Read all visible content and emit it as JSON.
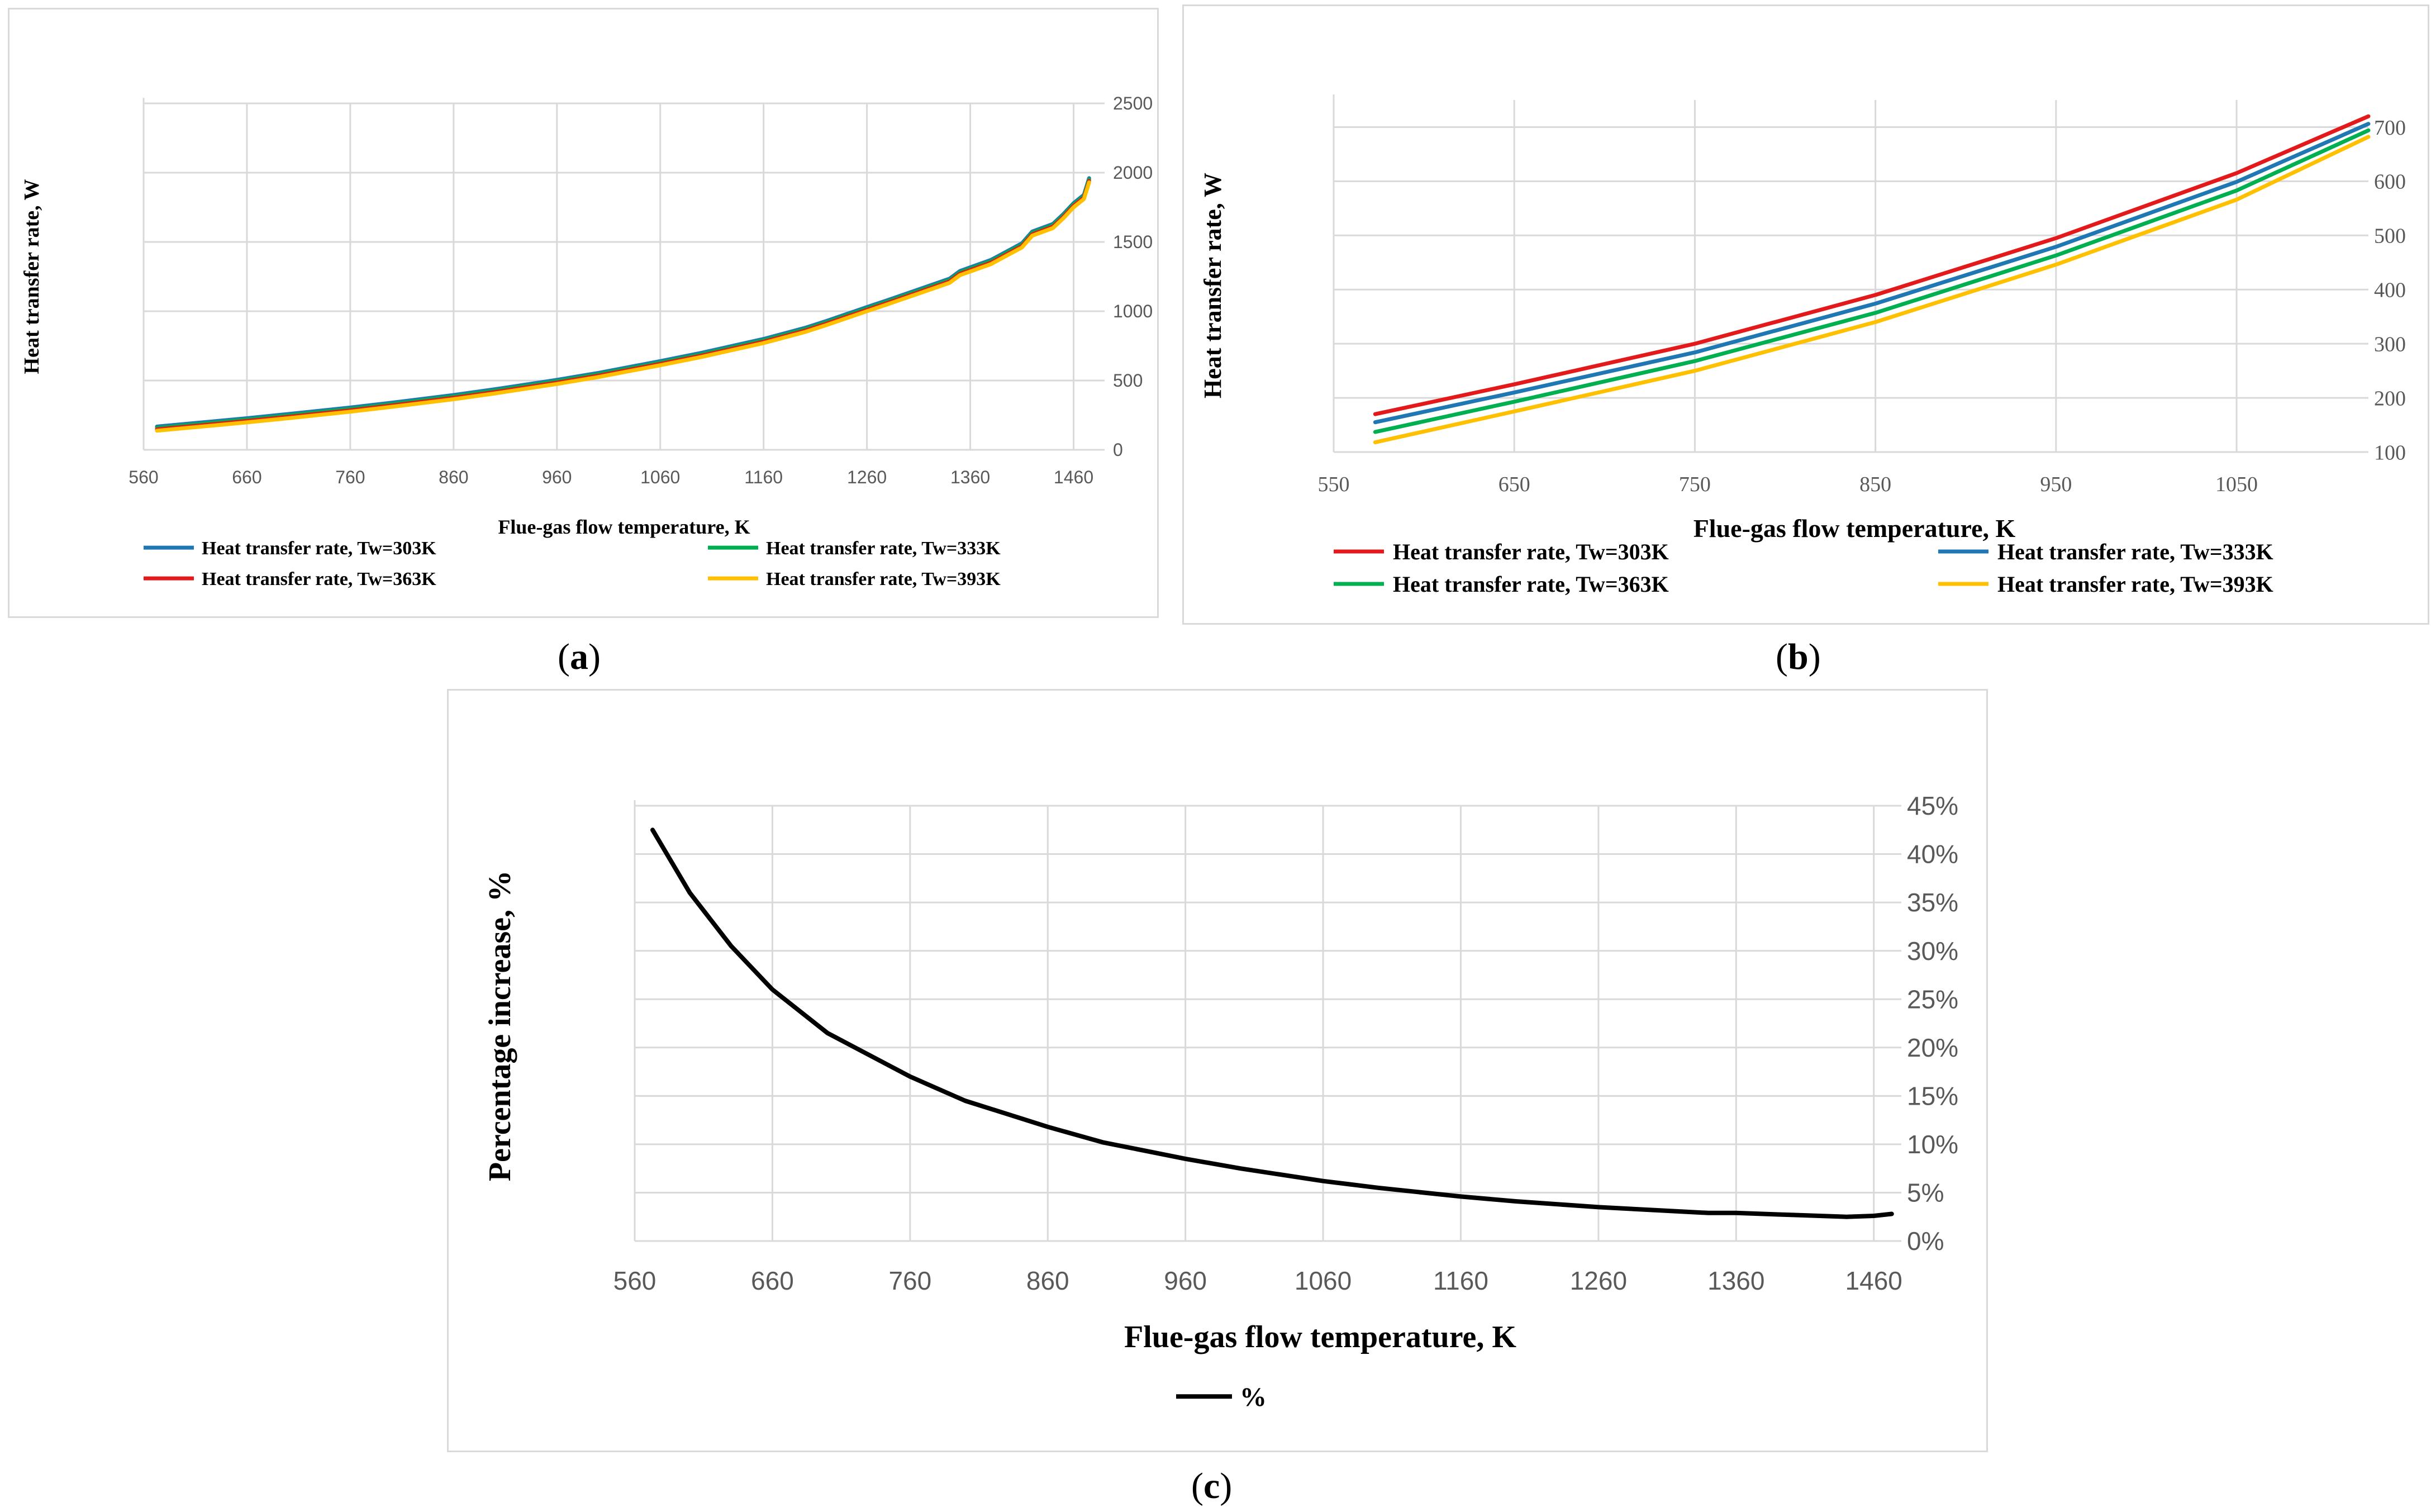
{
  "captions": [
    "(a)",
    "(b)",
    "(c)"
  ],
  "chart_data": [
    {
      "id": "a",
      "type": "line",
      "title": "",
      "xlabel": "Flue-gas flow temperature, K",
      "ylabel": "Heat transfer rate, W",
      "xlim": [
        560,
        1490
      ],
      "ylim": [
        0,
        2500
      ],
      "x_ticks": [
        "560",
        "660",
        "760",
        "860",
        "960",
        "1060",
        "1160",
        "1260",
        "1360",
        "1460"
      ],
      "x_tick_values": [
        560,
        660,
        760,
        860,
        960,
        1060,
        1160,
        1260,
        1360,
        1460
      ],
      "y_ticks": [
        "0",
        "500",
        "1000",
        "1500",
        "2000",
        "2500"
      ],
      "y_tick_values": [
        0,
        500,
        1000,
        1500,
        2000,
        2500
      ],
      "grid": true,
      "legend_position": "bottom",
      "series": [
        {
          "name": "Heat transfer rate, Tw=303K",
          "color": "#1f77b4",
          "x": [
            573,
            620,
            660,
            700,
            760,
            800,
            860,
            900,
            960,
            1000,
            1060,
            1100,
            1160,
            1200,
            1220,
            1260,
            1280,
            1340,
            1350,
            1380,
            1400,
            1410,
            1420,
            1440,
            1450,
            1460,
            1470,
            1475
          ],
          "y": [
            168,
            200,
            228,
            258,
            305,
            340,
            395,
            437,
            505,
            555,
            640,
            700,
            800,
            880,
            928,
            1030,
            1080,
            1235,
            1290,
            1370,
            1450,
            1490,
            1575,
            1630,
            1700,
            1780,
            1840,
            1960
          ]
        },
        {
          "name": "Heat transfer rate, Tw=333K",
          "color": "#00b050",
          "x": [
            573,
            620,
            660,
            700,
            760,
            800,
            860,
            900,
            960,
            1000,
            1060,
            1100,
            1160,
            1200,
            1220,
            1260,
            1280,
            1340,
            1350,
            1380,
            1400,
            1410,
            1420,
            1440,
            1450,
            1460,
            1470,
            1475
          ],
          "y": [
            158,
            190,
            218,
            248,
            295,
            330,
            385,
            427,
            495,
            545,
            630,
            690,
            790,
            870,
            918,
            1020,
            1070,
            1225,
            1280,
            1360,
            1440,
            1480,
            1565,
            1620,
            1690,
            1770,
            1830,
            1950
          ]
        },
        {
          "name": "Heat transfer rate, Tw=363K",
          "color": "#e31a1c",
          "x": [
            573,
            620,
            660,
            700,
            760,
            800,
            860,
            900,
            960,
            1000,
            1060,
            1100,
            1160,
            1200,
            1220,
            1260,
            1280,
            1340,
            1350,
            1380,
            1400,
            1410,
            1420,
            1440,
            1450,
            1460,
            1470,
            1475
          ],
          "y": [
            148,
            180,
            208,
            238,
            285,
            320,
            375,
            417,
            485,
            535,
            620,
            680,
            780,
            860,
            908,
            1010,
            1060,
            1215,
            1270,
            1350,
            1430,
            1470,
            1555,
            1610,
            1680,
            1760,
            1820,
            1940
          ]
        },
        {
          "name": "Heat transfer rate, Tw=393K",
          "color": "#ffc000",
          "x": [
            573,
            620,
            660,
            700,
            760,
            800,
            860,
            900,
            960,
            1000,
            1060,
            1100,
            1160,
            1200,
            1220,
            1260,
            1280,
            1340,
            1350,
            1380,
            1400,
            1410,
            1420,
            1440,
            1450,
            1460,
            1470,
            1475
          ],
          "y": [
            138,
            170,
            198,
            228,
            275,
            310,
            365,
            407,
            475,
            525,
            610,
            670,
            770,
            850,
            898,
            1000,
            1050,
            1205,
            1260,
            1340,
            1420,
            1460,
            1545,
            1600,
            1670,
            1750,
            1810,
            1930
          ]
        }
      ],
      "legend_order": [
        0,
        1,
        2,
        3
      ]
    },
    {
      "id": "b",
      "type": "line",
      "title": "",
      "xlabel": "Flue-gas flow temperature, K",
      "ylabel": "Heat transfer rate, W",
      "xlim": [
        550,
        1123
      ],
      "ylim": [
        100,
        750
      ],
      "x_ticks": [
        "550",
        "650",
        "750",
        "850",
        "950",
        "1050"
      ],
      "x_tick_values": [
        550,
        650,
        750,
        850,
        950,
        1050
      ],
      "y_ticks": [
        "100",
        "200",
        "300",
        "400",
        "500",
        "600",
        "700"
      ],
      "y_tick_values": [
        100,
        200,
        300,
        400,
        500,
        600,
        700
      ],
      "grid": true,
      "legend_position": "bottom",
      "series": [
        {
          "name": "Heat transfer rate, Tw=303K",
          "color": "#e31a1c",
          "x": [
            573,
            650,
            750,
            850,
            950,
            1050,
            1123
          ],
          "y": [
            170,
            225,
            300,
            390,
            495,
            615,
            720
          ]
        },
        {
          "name": "Heat transfer rate, Tw=333K",
          "color": "#1f77b4",
          "x": [
            573,
            650,
            750,
            850,
            950,
            1050,
            1123
          ],
          "y": [
            155,
            210,
            284,
            374,
            479,
            599,
            706
          ]
        },
        {
          "name": "Heat transfer rate, Tw=363K",
          "color": "#00b050",
          "x": [
            573,
            650,
            750,
            850,
            950,
            1050,
            1123
          ],
          "y": [
            137,
            193,
            268,
            357,
            463,
            583,
            694
          ]
        },
        {
          "name": "Heat transfer rate, Tw=393K",
          "color": "#ffc000",
          "x": [
            573,
            650,
            750,
            850,
            950,
            1050,
            1123
          ],
          "y": [
            118,
            175,
            250,
            340,
            446,
            566,
            682
          ]
        }
      ],
      "legend_order": [
        0,
        1,
        2,
        3
      ]
    },
    {
      "id": "c",
      "type": "line",
      "title": "",
      "xlabel": "Flue-gas flow temperature, K",
      "ylabel": "Percentage increase, %",
      "xlim": [
        560,
        1480
      ],
      "ylim": [
        0,
        45
      ],
      "x_ticks": [
        "560",
        "660",
        "760",
        "860",
        "960",
        "1060",
        "1160",
        "1260",
        "1360",
        "1460"
      ],
      "x_tick_values": [
        560,
        660,
        760,
        860,
        960,
        1060,
        1160,
        1260,
        1360,
        1460
      ],
      "y_ticks": [
        "0%",
        "5%",
        "10%",
        "15%",
        "20%",
        "25%",
        "30%",
        "35%",
        "40%",
        "45%"
      ],
      "y_tick_values": [
        0,
        5,
        10,
        15,
        20,
        25,
        30,
        35,
        40,
        45
      ],
      "grid": true,
      "legend_position": "bottom",
      "series": [
        {
          "name": "%",
          "color": "#000000",
          "x": [
            573,
            600,
            630,
            660,
            700,
            760,
            800,
            860,
            900,
            960,
            1000,
            1060,
            1100,
            1160,
            1200,
            1260,
            1300,
            1340,
            1360,
            1400,
            1440,
            1460,
            1473
          ],
          "y": [
            42.5,
            36.0,
            30.5,
            26.0,
            21.5,
            17.0,
            14.5,
            11.8,
            10.2,
            8.5,
            7.5,
            6.2,
            5.5,
            4.6,
            4.1,
            3.5,
            3.2,
            2.9,
            2.9,
            2.7,
            2.5,
            2.6,
            2.8
          ]
        }
      ],
      "legend_order": [
        0
      ]
    }
  ]
}
